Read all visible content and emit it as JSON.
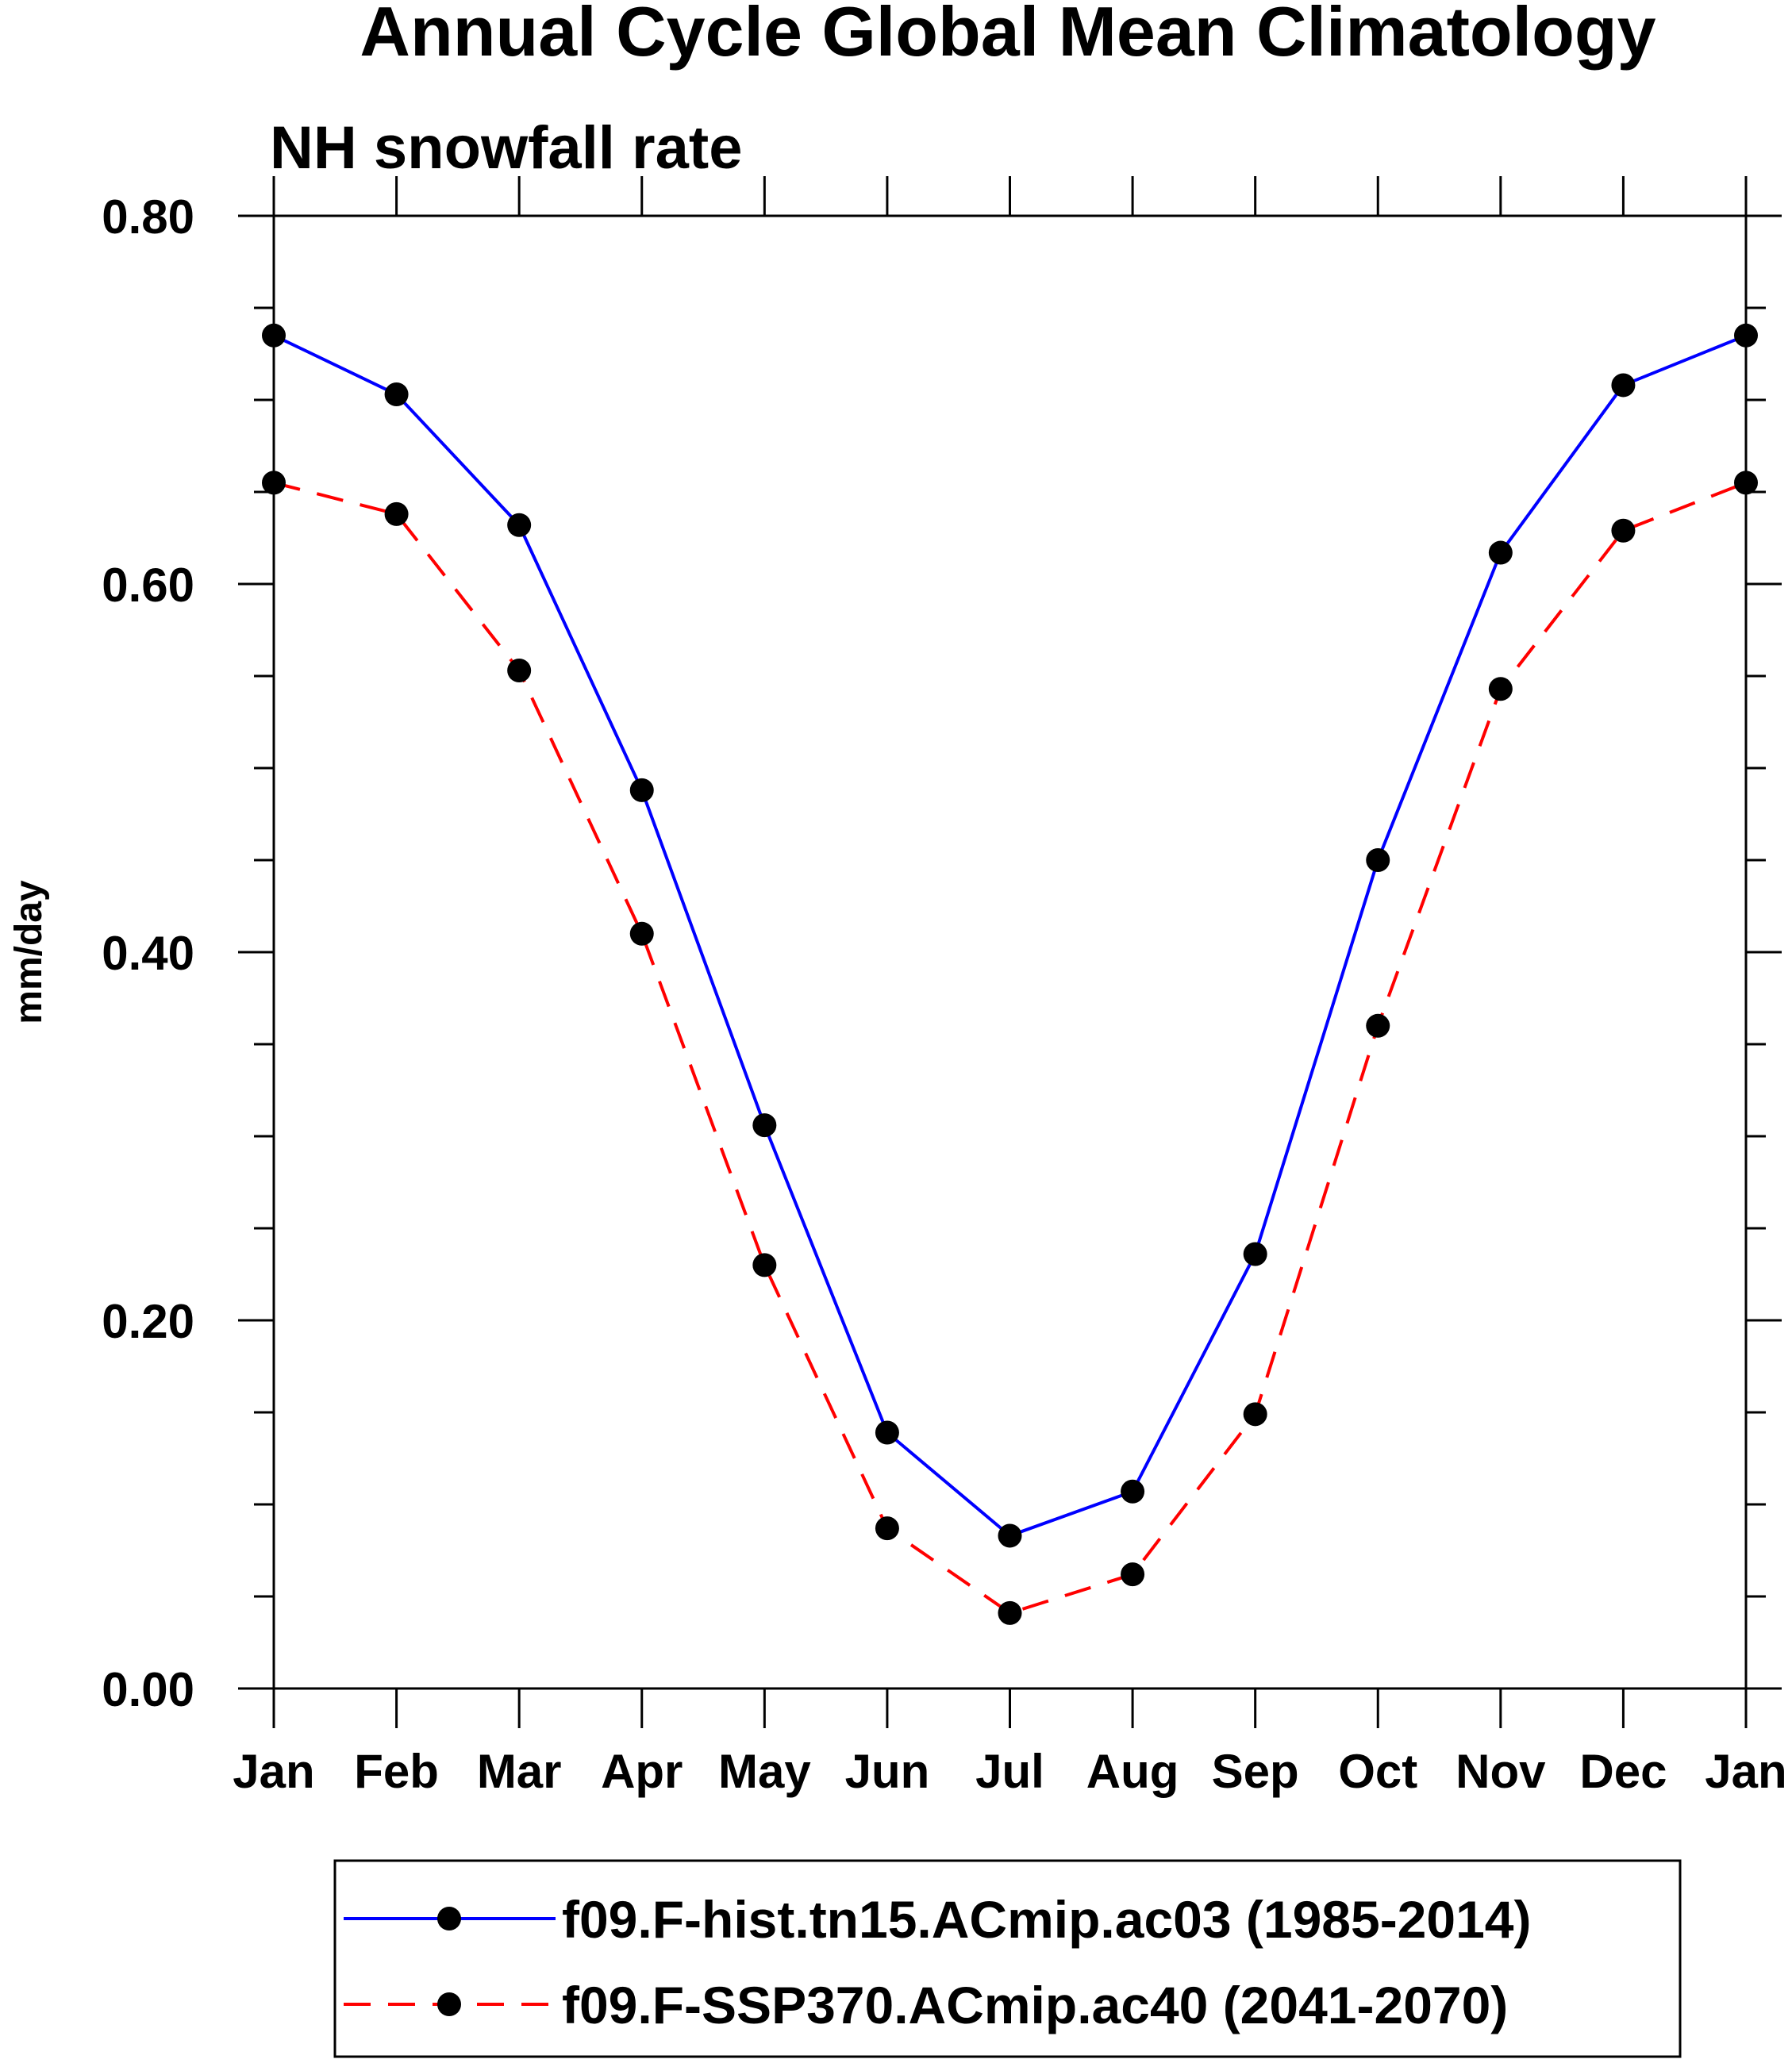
{
  "chart_data": {
    "type": "line",
    "title": "Annual Cycle Global Mean Climatology",
    "subtitle": "NH snowfall rate",
    "xlabel": "",
    "ylabel": "mm/day",
    "categories": [
      "Jan",
      "Feb",
      "Mar",
      "Apr",
      "May",
      "Jun",
      "Jul",
      "Aug",
      "Sep",
      "Oct",
      "Nov",
      "Dec",
      "Jan"
    ],
    "ylim": [
      0.0,
      0.8
    ],
    "yticks": [
      "0.00",
      "0.20",
      "0.40",
      "0.60",
      "0.80"
    ],
    "grid": false,
    "legend_position": "bottom-center",
    "series": [
      {
        "name": "f09.F-hist.tn15.ACmip.ac03 (1985-2014)",
        "color": "#0000ff",
        "line_style": "solid",
        "marker": "filled-circle",
        "values": [
          0.735,
          0.703,
          0.632,
          0.488,
          0.306,
          0.139,
          0.083,
          0.107,
          0.236,
          0.45,
          0.617,
          0.708,
          0.735
        ]
      },
      {
        "name": "f09.F-SSP370.ACmip.ac40 (2041-2070)",
        "color": "#ff0000",
        "line_style": "dashed",
        "marker": "filled-circle",
        "values": [
          0.655,
          0.638,
          0.553,
          0.41,
          0.23,
          0.087,
          0.041,
          0.062,
          0.149,
          0.36,
          0.543,
          0.629,
          0.655
        ]
      }
    ]
  }
}
